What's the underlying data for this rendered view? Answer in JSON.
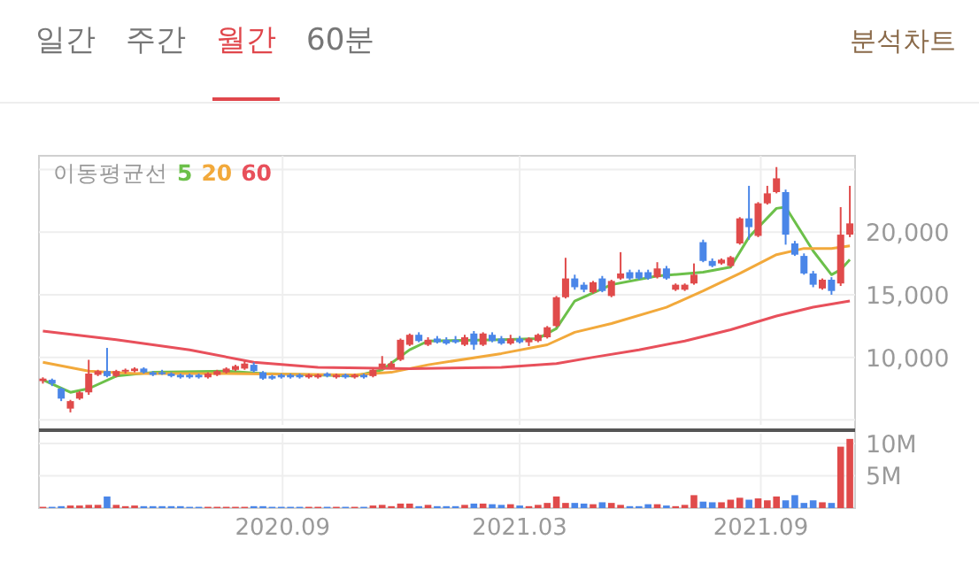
{
  "chart_data": [
    {
      "type": "candlestick",
      "annotations": [
        "일간",
        "주간",
        "월간",
        "60분",
        "분석차트"
      ],
      "legend_title": "이동평균선",
      "legend": "top left",
      "grid": true,
      "tick_labels": "y",
      "xlim": [
        "2020-02-28",
        "2021-11-12"
      ],
      "xticks": [
        {
          "value": "2020-09-01",
          "label": null
        },
        {
          "value": "2021-03-01",
          "label": null
        },
        {
          "value": "2021-09-01",
          "label": null
        }
      ],
      "ylim": [
        4600,
        26100
      ],
      "yticks": [
        {
          "value": 5000,
          "label": null
        },
        {
          "value": 10000,
          "label": "10,000"
        },
        {
          "value": 15000,
          "label": "15,000"
        },
        {
          "value": 20000,
          "label": "20,000"
        },
        {
          "value": 25000,
          "label": null
        }
      ],
      "x": [
        "2020-03-02",
        "2020-03-09",
        "2020-03-16",
        "2020-03-23",
        "2020-03-30",
        "2020-04-06",
        "2020-04-13",
        "2020-04-20",
        "2020-04-27",
        "2020-05-04",
        "2020-05-11",
        "2020-05-18",
        "2020-05-25",
        "2020-06-01",
        "2020-06-08",
        "2020-06-15",
        "2020-06-22",
        "2020-06-29",
        "2020-07-06",
        "2020-07-13",
        "2020-07-20",
        "2020-07-27",
        "2020-08-03",
        "2020-08-10",
        "2020-08-17",
        "2020-08-24",
        "2020-08-31",
        "2020-09-07",
        "2020-09-14",
        "2020-09-21",
        "2020-09-28",
        "2020-10-05",
        "2020-10-12",
        "2020-10-19",
        "2020-10-26",
        "2020-11-02",
        "2020-11-09",
        "2020-11-16",
        "2020-11-23",
        "2020-11-30",
        "2020-12-07",
        "2020-12-14",
        "2020-12-21",
        "2020-12-28",
        "2021-01-04",
        "2021-01-11",
        "2021-01-18",
        "2021-01-25",
        "2021-02-01",
        "2021-02-08",
        "2021-02-15",
        "2021-02-22",
        "2021-03-01",
        "2021-03-08",
        "2021-03-15",
        "2021-03-22",
        "2021-03-29",
        "2021-04-05",
        "2021-04-12",
        "2021-04-19",
        "2021-04-26",
        "2021-05-03",
        "2021-05-10",
        "2021-05-17",
        "2021-05-24",
        "2021-05-31",
        "2021-06-07",
        "2021-06-14",
        "2021-06-21",
        "2021-06-28",
        "2021-07-05",
        "2021-07-12",
        "2021-07-19",
        "2021-07-26",
        "2021-08-02",
        "2021-08-09",
        "2021-08-16",
        "2021-08-23",
        "2021-08-30",
        "2021-09-06",
        "2021-09-13",
        "2021-09-20",
        "2021-09-27",
        "2021-10-04",
        "2021-10-11",
        "2021-10-18",
        "2021-10-25",
        "2021-11-01",
        "2021-11-08"
      ],
      "ohlc": [
        [
          8100,
          8400,
          7900,
          8300
        ],
        [
          8200,
          8300,
          7700,
          7900
        ],
        [
          7500,
          7600,
          6500,
          6700
        ],
        [
          5900,
          6600,
          5600,
          6500
        ],
        [
          6700,
          7300,
          6600,
          7200
        ],
        [
          7200,
          9800,
          7000,
          8700
        ],
        [
          8600,
          9000,
          8500,
          8900
        ],
        [
          8900,
          10750,
          8400,
          8500
        ],
        [
          8500,
          9000,
          8400,
          8900
        ],
        [
          8900,
          9100,
          8700,
          9000
        ],
        [
          8900,
          9200,
          8800,
          9100
        ],
        [
          9100,
          9200,
          8700,
          8800
        ],
        [
          8800,
          8900,
          8500,
          8600
        ],
        [
          8800,
          9000,
          8600,
          8700
        ],
        [
          8700,
          8800,
          8400,
          8500
        ],
        [
          8600,
          8700,
          8300,
          8400
        ],
        [
          8600,
          8700,
          8300,
          8400
        ],
        [
          8600,
          8700,
          8300,
          8400
        ],
        [
          8400,
          8800,
          8300,
          8700
        ],
        [
          8600,
          9000,
          8500,
          8900
        ],
        [
          8800,
          9200,
          8700,
          9100
        ],
        [
          9000,
          9400,
          8900,
          9300
        ],
        [
          9100,
          9700,
          9000,
          9500
        ],
        [
          9400,
          9600,
          8800,
          8900
        ],
        [
          8800,
          8900,
          8200,
          8300
        ],
        [
          8500,
          8600,
          8200,
          8300
        ],
        [
          8600,
          8700,
          8300,
          8400
        ],
        [
          8600,
          8700,
          8300,
          8400
        ],
        [
          8600,
          8700,
          8300,
          8400
        ],
        [
          8400,
          8700,
          8300,
          8600
        ],
        [
          8400,
          8700,
          8300,
          8600
        ],
        [
          8700,
          8800,
          8400,
          8500
        ],
        [
          8400,
          8700,
          8300,
          8600
        ],
        [
          8600,
          8700,
          8300,
          8400
        ],
        [
          8400,
          8700,
          8300,
          8600
        ],
        [
          8600,
          8700,
          8300,
          8400
        ],
        [
          8500,
          9100,
          8400,
          9000
        ],
        [
          9200,
          10100,
          9100,
          9500
        ],
        [
          9200,
          9700,
          9100,
          9500
        ],
        [
          9800,
          11500,
          9700,
          11400
        ],
        [
          11000,
          11900,
          10900,
          11800
        ],
        [
          11800,
          12000,
          11200,
          11300
        ],
        [
          11000,
          11600,
          10900,
          11400
        ],
        [
          11500,
          11700,
          11100,
          11200
        ],
        [
          11400,
          11600,
          11000,
          11100
        ],
        [
          11400,
          11700,
          11100,
          11200
        ],
        [
          11000,
          11800,
          10900,
          11600
        ],
        [
          11900,
          12100,
          10600,
          11000
        ],
        [
          11000,
          12000,
          10900,
          11900
        ],
        [
          11800,
          12000,
          11200,
          11300
        ],
        [
          11500,
          11700,
          11000,
          11100
        ],
        [
          11100,
          11800,
          11000,
          11500
        ],
        [
          11500,
          11700,
          11100,
          11200
        ],
        [
          11200,
          11600,
          10900,
          11500
        ],
        [
          11300,
          11900,
          11200,
          11800
        ],
        [
          11600,
          12500,
          11500,
          12400
        ],
        [
          12500,
          14900,
          12400,
          14800
        ],
        [
          14800,
          17950,
          14700,
          16300
        ],
        [
          16300,
          16600,
          15400,
          15600
        ],
        [
          15800,
          16000,
          15200,
          15400
        ],
        [
          15200,
          16100,
          15100,
          16000
        ],
        [
          16300,
          16500,
          15200,
          15300
        ],
        [
          14900,
          16200,
          14800,
          16100
        ],
        [
          16300,
          18400,
          16200,
          16700
        ],
        [
          16800,
          17000,
          16200,
          16300
        ],
        [
          16800,
          17000,
          16200,
          16300
        ],
        [
          16800,
          17000,
          16200,
          16300
        ],
        [
          16400,
          17600,
          16300,
          17100
        ],
        [
          17100,
          17300,
          16200,
          16300
        ],
        [
          15400,
          15900,
          15300,
          15800
        ],
        [
          15400,
          15900,
          15300,
          15800
        ],
        [
          15900,
          17500,
          15800,
          16600
        ],
        [
          19200,
          19400,
          17600,
          17700
        ],
        [
          17700,
          17900,
          17200,
          17300
        ],
        [
          17500,
          17900,
          17400,
          17800
        ],
        [
          17300,
          18100,
          17200,
          18000
        ],
        [
          19100,
          21200,
          19000,
          21100
        ],
        [
          21100,
          23700,
          19400,
          20400
        ],
        [
          19700,
          22400,
          19600,
          22300
        ],
        [
          22300,
          23700,
          22200,
          23100
        ],
        [
          23200,
          25200,
          23100,
          24300
        ],
        [
          23200,
          23400,
          19000,
          19800
        ],
        [
          19100,
          19300,
          18100,
          18200
        ],
        [
          18100,
          18300,
          16600,
          16700
        ],
        [
          16700,
          16900,
          15600,
          15800
        ],
        [
          15500,
          16300,
          15400,
          16200
        ],
        [
          16200,
          16400,
          15000,
          15300
        ],
        [
          15900,
          22000,
          15700,
          19800
        ],
        [
          19800,
          23700,
          19600,
          20700
        ]
      ],
      "colors": [
        "#e04b4b",
        "#4a86e8",
        "#4a86e8",
        "#e04b4b",
        "#e04b4b",
        "#e04b4b",
        "#e04b4b",
        "#4a86e8",
        "#e04b4b",
        "#e04b4b",
        "#e04b4b",
        "#4a86e8",
        "#4a86e8",
        "#4a86e8",
        "#4a86e8",
        "#4a86e8",
        "#4a86e8",
        "#4a86e8",
        "#e04b4b",
        "#e04b4b",
        "#e04b4b",
        "#e04b4b",
        "#e04b4b",
        "#4a86e8",
        "#4a86e8",
        "#4a86e8",
        "#4a86e8",
        "#4a86e8",
        "#4a86e8",
        "#e04b4b",
        "#e04b4b",
        "#4a86e8",
        "#e04b4b",
        "#4a86e8",
        "#e04b4b",
        "#4a86e8",
        "#e04b4b",
        "#e04b4b",
        "#e04b4b",
        "#e04b4b",
        "#e04b4b",
        "#4a86e8",
        "#e04b4b",
        "#4a86e8",
        "#4a86e8",
        "#4a86e8",
        "#e04b4b",
        "#4a86e8",
        "#e04b4b",
        "#4a86e8",
        "#4a86e8",
        "#e04b4b",
        "#4a86e8",
        "#e04b4b",
        "#e04b4b",
        "#e04b4b",
        "#e04b4b",
        "#e04b4b",
        "#4a86e8",
        "#4a86e8",
        "#e04b4b",
        "#4a86e8",
        "#e04b4b",
        "#e04b4b",
        "#4a86e8",
        "#4a86e8",
        "#4a86e8",
        "#e04b4b",
        "#4a86e8",
        "#e04b4b",
        "#e04b4b",
        "#e04b4b",
        "#4a86e8",
        "#4a86e8",
        "#e04b4b",
        "#e04b4b",
        "#e04b4b",
        "#4a86e8",
        "#e04b4b",
        "#e04b4b",
        "#e04b4b",
        "#4a86e8",
        "#4a86e8",
        "#4a86e8",
        "#4a86e8",
        "#e04b4b",
        "#4a86e8",
        "#e04b4b",
        "#e04b4b"
      ],
      "series": [
        {
          "type": "line",
          "name": "5",
          "color": "#6cc04a",
          "x": [
            "2020-03-02",
            "2020-03-23",
            "2020-04-06",
            "2020-04-27",
            "2020-05-25",
            "2020-07-20",
            "2020-08-17",
            "2020-10-26",
            "2020-11-16",
            "2020-12-07",
            "2020-12-21",
            "2021-02-15",
            "2021-03-15",
            "2021-03-29",
            "2021-04-12",
            "2021-05-10",
            "2021-06-14",
            "2021-07-19",
            "2021-08-09",
            "2021-08-23",
            "2021-09-13",
            "2021-09-20",
            "2021-10-11",
            "2021-10-25",
            "2021-11-01",
            "2021-11-08"
          ],
          "values": [
            8200,
            7200,
            7500,
            8500,
            8800,
            8900,
            8700,
            8500,
            9000,
            10600,
            11300,
            11400,
            11500,
            12300,
            14500,
            15800,
            16500,
            16800,
            17200,
            19600,
            21900,
            22000,
            18500,
            16600,
            17000,
            17800
          ]
        },
        {
          "type": "line",
          "name": "20",
          "color": "#f2a93b",
          "x": [
            "2020-03-02",
            "2020-04-06",
            "2020-05-11",
            "2020-07-20",
            "2020-10-26",
            "2020-11-23",
            "2020-12-21",
            "2021-02-15",
            "2021-03-22",
            "2021-04-12",
            "2021-05-10",
            "2021-06-21",
            "2021-07-19",
            "2021-08-16",
            "2021-09-13",
            "2021-10-04",
            "2021-10-25",
            "2021-11-08"
          ],
          "values": [
            9600,
            8900,
            8700,
            8700,
            8600,
            8800,
            9400,
            10300,
            11000,
            12000,
            12700,
            14000,
            15300,
            16700,
            18200,
            18700,
            18700,
            18900
          ]
        },
        {
          "type": "line",
          "name": "60",
          "color": "#e8505b",
          "x": [
            "2020-03-02",
            "2020-04-27",
            "2020-06-22",
            "2020-08-10",
            "2020-09-28",
            "2020-12-07",
            "2021-02-15",
            "2021-03-29",
            "2021-04-26",
            "2021-05-31",
            "2021-07-05",
            "2021-08-09",
            "2021-09-13",
            "2021-10-11",
            "2021-11-08"
          ],
          "values": [
            12100,
            11400,
            10600,
            9600,
            9200,
            9100,
            9200,
            9500,
            10000,
            10600,
            11300,
            12200,
            13300,
            14000,
            14500
          ]
        }
      ]
    },
    {
      "type": "bar",
      "grid": true,
      "xlim": [
        "2020-02-28",
        "2021-11-12"
      ],
      "xticks": [
        {
          "value": "2020-09-01",
          "label": "2020.09"
        },
        {
          "value": "2021-03-01",
          "label": "2021.03"
        },
        {
          "value": "2021-09-01",
          "label": "2021.09"
        }
      ],
      "ylim": [
        0,
        11.5
      ],
      "yticks": [
        {
          "value": 5,
          "label": "5M"
        },
        {
          "value": 10,
          "label": "10M"
        }
      ],
      "x": [
        "2020-03-02",
        "2020-03-09",
        "2020-03-16",
        "2020-03-23",
        "2020-03-30",
        "2020-04-06",
        "2020-04-13",
        "2020-04-20",
        "2020-04-27",
        "2020-05-04",
        "2020-05-11",
        "2020-05-18",
        "2020-05-25",
        "2020-06-01",
        "2020-06-08",
        "2020-06-15",
        "2020-06-22",
        "2020-06-29",
        "2020-07-06",
        "2020-07-13",
        "2020-07-20",
        "2020-07-27",
        "2020-08-03",
        "2020-08-10",
        "2020-08-17",
        "2020-08-24",
        "2020-08-31",
        "2020-09-07",
        "2020-09-14",
        "2020-09-21",
        "2020-09-28",
        "2020-10-05",
        "2020-10-12",
        "2020-10-19",
        "2020-10-26",
        "2020-11-02",
        "2020-11-09",
        "2020-11-16",
        "2020-11-23",
        "2020-11-30",
        "2020-12-07",
        "2020-12-14",
        "2020-12-21",
        "2020-12-28",
        "2021-01-04",
        "2021-01-11",
        "2021-01-18",
        "2021-01-25",
        "2021-02-01",
        "2021-02-08",
        "2021-02-15",
        "2021-02-22",
        "2021-03-01",
        "2021-03-08",
        "2021-03-15",
        "2021-03-22",
        "2021-03-29",
        "2021-04-05",
        "2021-04-12",
        "2021-04-19",
        "2021-04-26",
        "2021-05-03",
        "2021-05-10",
        "2021-05-17",
        "2021-05-24",
        "2021-05-31",
        "2021-06-07",
        "2021-06-14",
        "2021-06-21",
        "2021-06-28",
        "2021-07-05",
        "2021-07-12",
        "2021-07-19",
        "2021-07-26",
        "2021-08-02",
        "2021-08-09",
        "2021-08-16",
        "2021-08-23",
        "2021-08-30",
        "2021-09-06",
        "2021-09-13",
        "2021-09-20",
        "2021-09-27",
        "2021-10-04",
        "2021-10-11",
        "2021-10-18",
        "2021-10-25",
        "2021-11-01",
        "2021-11-08"
      ],
      "values": [
        0.2,
        0.2,
        0.3,
        0.4,
        0.4,
        0.5,
        0.5,
        1.8,
        0.5,
        0.3,
        0.4,
        0.3,
        0.3,
        0.3,
        0.3,
        0.3,
        0.2,
        0.2,
        0.2,
        0.2,
        0.2,
        0.2,
        0.2,
        0.3,
        0.3,
        0.2,
        0.2,
        0.2,
        0.2,
        0.2,
        0.2,
        0.2,
        0.2,
        0.2,
        0.2,
        0.2,
        0.4,
        0.5,
        0.3,
        0.7,
        0.7,
        0.3,
        0.5,
        0.3,
        0.3,
        0.3,
        0.5,
        0.7,
        0.7,
        0.6,
        0.5,
        0.6,
        0.4,
        0.3,
        0.5,
        0.8,
        1.8,
        0.8,
        0.8,
        0.7,
        0.6,
        0.9,
        0.8,
        0.5,
        0.3,
        0.3,
        0.6,
        0.6,
        0.4,
        0.3,
        0.5,
        2.0,
        1.0,
        0.9,
        0.9,
        1.3,
        1.6,
        1.3,
        1.5,
        1.2,
        1.8,
        1.2,
        2.0,
        0.8,
        1.2,
        0.9,
        0.8,
        9.5,
        10.7
      ],
      "colors": [
        "#e04b4b",
        "#4a86e8",
        "#4a86e8",
        "#e04b4b",
        "#e04b4b",
        "#e04b4b",
        "#e04b4b",
        "#4a86e8",
        "#e04b4b",
        "#e04b4b",
        "#e04b4b",
        "#4a86e8",
        "#4a86e8",
        "#4a86e8",
        "#4a86e8",
        "#4a86e8",
        "#4a86e8",
        "#4a86e8",
        "#e04b4b",
        "#e04b4b",
        "#e04b4b",
        "#e04b4b",
        "#e04b4b",
        "#4a86e8",
        "#4a86e8",
        "#4a86e8",
        "#4a86e8",
        "#4a86e8",
        "#4a86e8",
        "#e04b4b",
        "#e04b4b",
        "#4a86e8",
        "#e04b4b",
        "#4a86e8",
        "#e04b4b",
        "#4a86e8",
        "#e04b4b",
        "#e04b4b",
        "#e04b4b",
        "#e04b4b",
        "#e04b4b",
        "#4a86e8",
        "#e04b4b",
        "#4a86e8",
        "#4a86e8",
        "#4a86e8",
        "#e04b4b",
        "#4a86e8",
        "#e04b4b",
        "#4a86e8",
        "#4a86e8",
        "#e04b4b",
        "#4a86e8",
        "#e04b4b",
        "#e04b4b",
        "#e04b4b",
        "#e04b4b",
        "#e04b4b",
        "#4a86e8",
        "#4a86e8",
        "#e04b4b",
        "#4a86e8",
        "#e04b4b",
        "#e04b4b",
        "#4a86e8",
        "#4a86e8",
        "#4a86e8",
        "#e04b4b",
        "#4a86e8",
        "#e04b4b",
        "#e04b4b",
        "#e04b4b",
        "#4a86e8",
        "#4a86e8",
        "#e04b4b",
        "#e04b4b",
        "#e04b4b",
        "#4a86e8",
        "#e04b4b",
        "#e04b4b",
        "#e04b4b",
        "#4a86e8",
        "#4a86e8",
        "#4a86e8",
        "#4a86e8",
        "#e04b4b",
        "#4a86e8",
        "#e04b4b",
        "#e04b4b"
      ]
    }
  ]
}
